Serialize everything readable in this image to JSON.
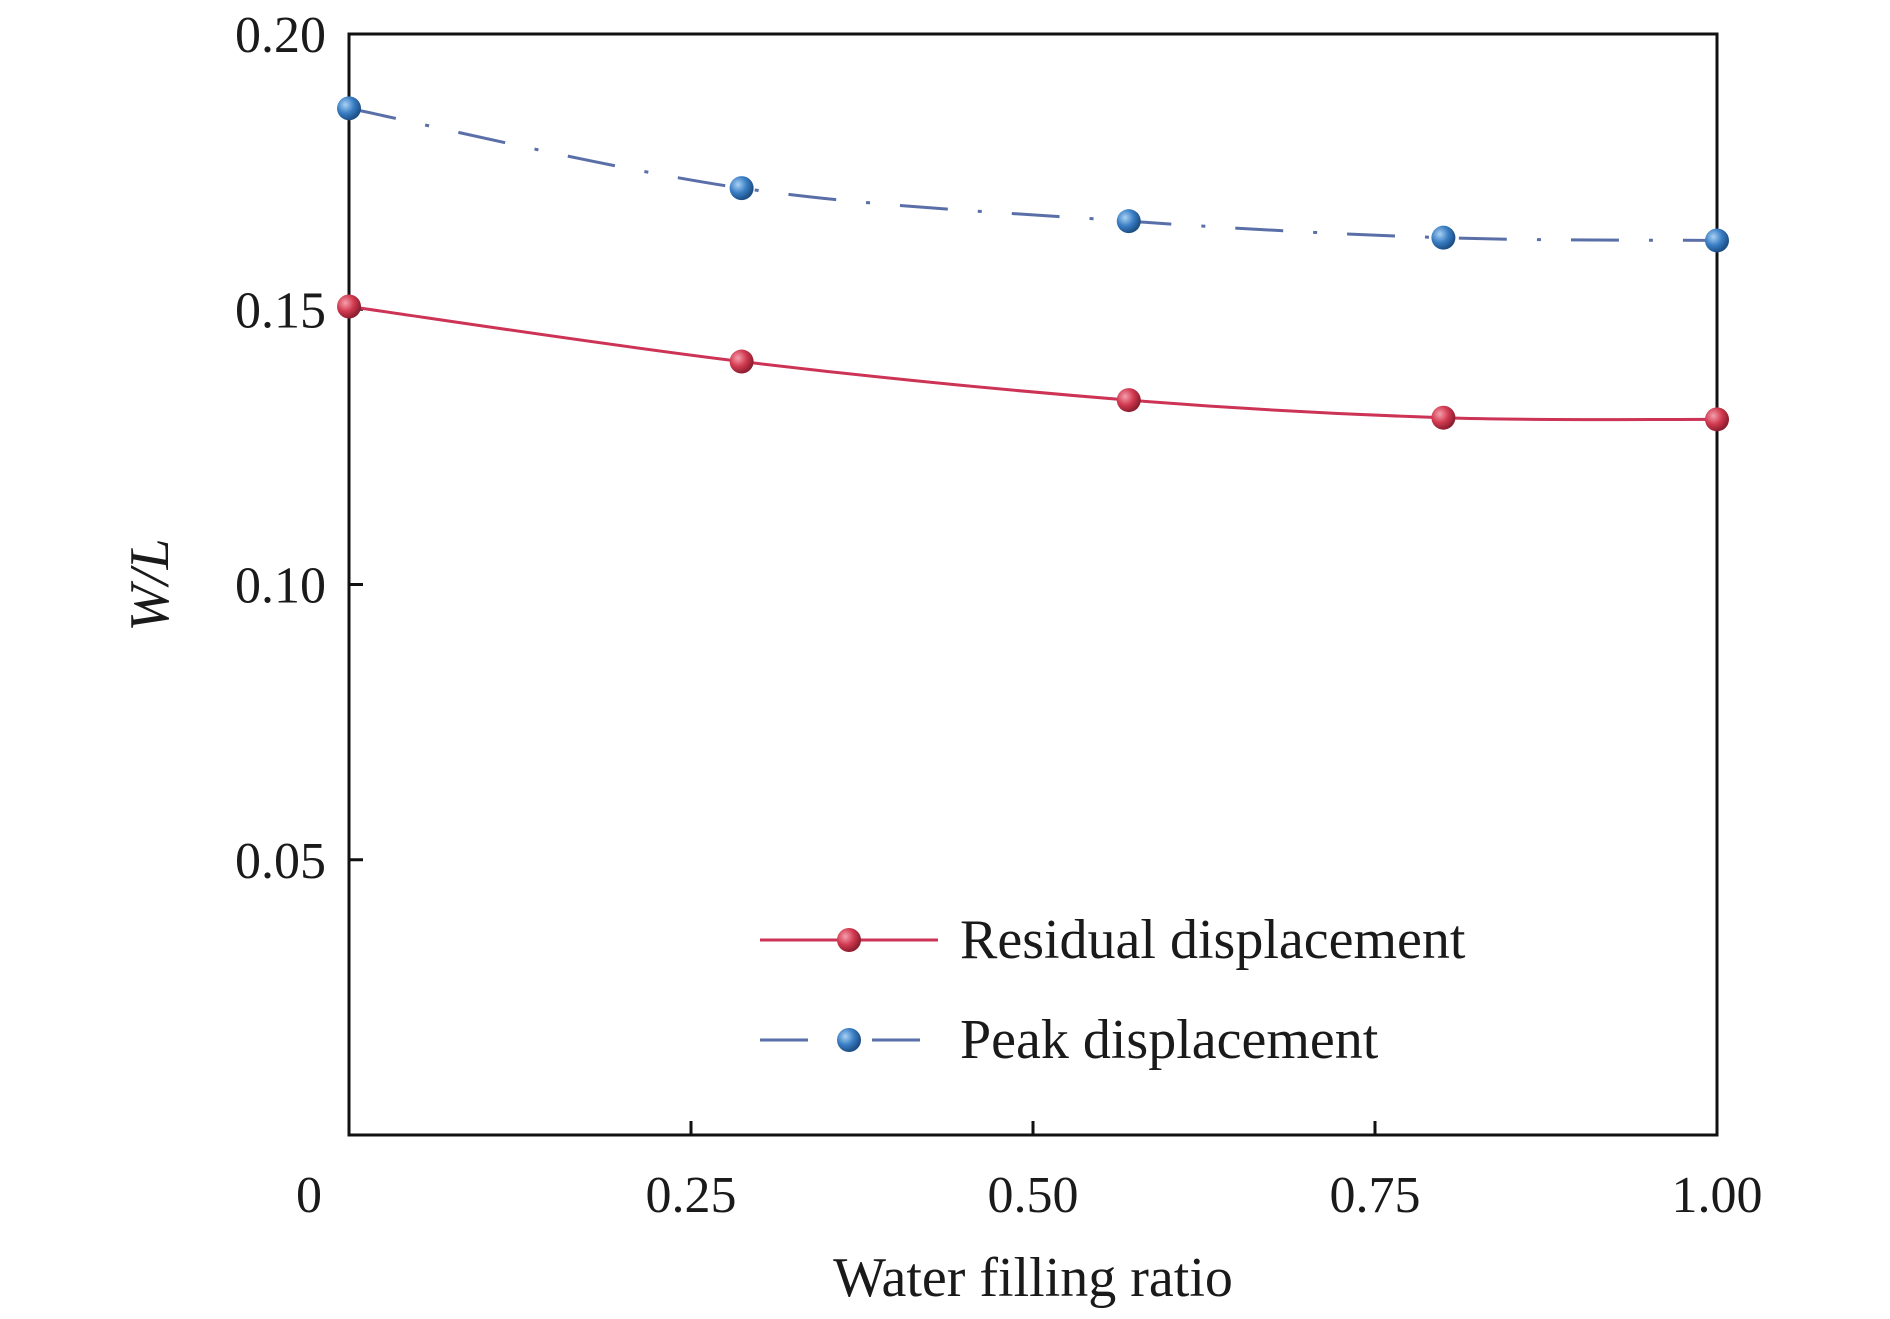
{
  "chart_data": {
    "type": "line",
    "title": "",
    "xlabel": "Water filling ratio",
    "ylabel": "W/L",
    "xlim": [
      0,
      1.0
    ],
    "ylim": [
      0,
      0.2
    ],
    "xticks": [
      0,
      0.25,
      0.5,
      0.75,
      1.0
    ],
    "xtick_labels": [
      "0",
      "0.25",
      "0.50",
      "0.75",
      "1.00"
    ],
    "yticks": [
      0.05,
      0.1,
      0.15,
      0.2
    ],
    "ytick_labels": [
      "0.05",
      "0.10",
      "0.15",
      "0.20"
    ],
    "grid": false,
    "legend_position": "bottom-right",
    "series": [
      {
        "name": "Residual displacement",
        "color": "#cc3355",
        "marker_color": "#d23a50",
        "line_style": "solid",
        "x": [
          0,
          0.287,
          0.57,
          0.8,
          1.0
        ],
        "y": [
          0.1505,
          0.1405,
          0.1335,
          0.1303,
          0.13
        ]
      },
      {
        "name": "Peak displacement",
        "color": "#5a6fa8",
        "marker_color": "#3a7ec4",
        "line_style": "dash-dot",
        "x": [
          0,
          0.287,
          0.57,
          0.8,
          1.0
        ],
        "y": [
          0.1865,
          0.172,
          0.166,
          0.163,
          0.1625
        ]
      }
    ]
  }
}
